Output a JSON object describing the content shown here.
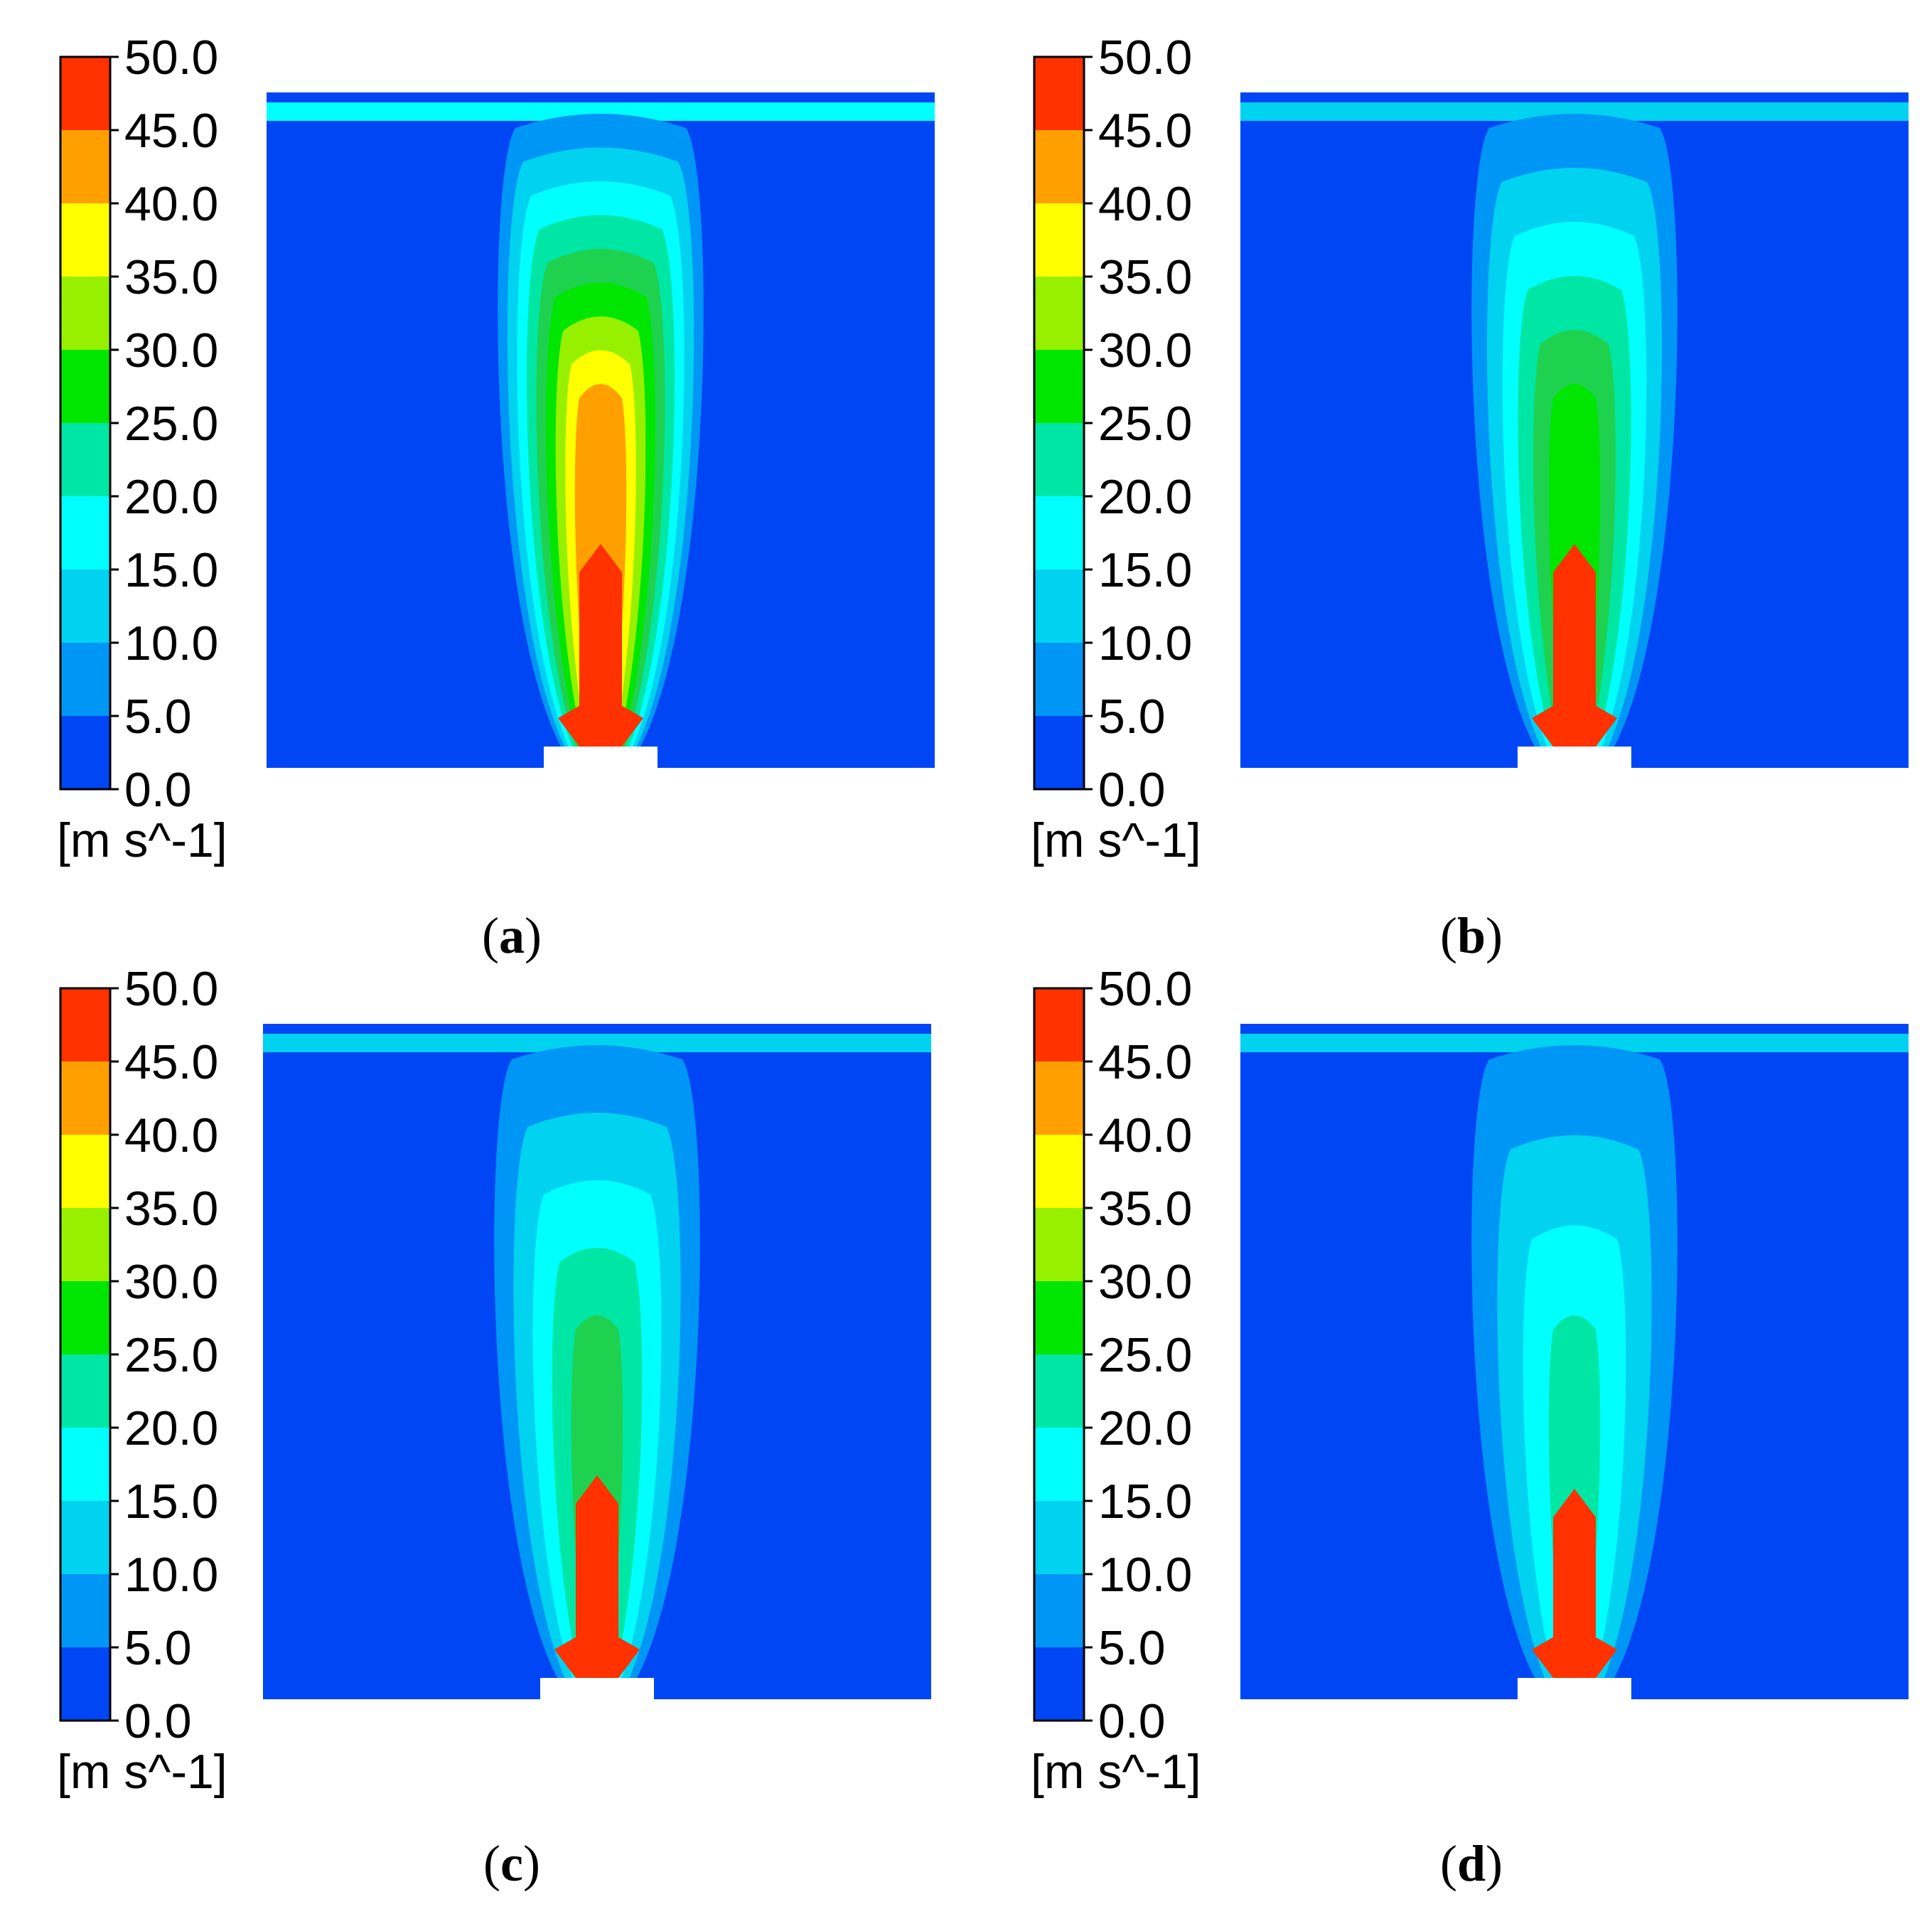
{
  "chart_data": {
    "type": "heatmap",
    "description_units": "m s^-1",
    "colorbar": {
      "min": 0.0,
      "max": 50.0,
      "step": 5.0,
      "tick_labels": [
        "50.0",
        "45.0",
        "40.0",
        "35.0",
        "30.0",
        "25.0",
        "20.0",
        "15.0",
        "10.0",
        "5.0",
        "0.0"
      ],
      "unit_label": "[m s^-1]",
      "colors": [
        "#0046f5",
        "#0096f5",
        "#00d2f0",
        "#00ffff",
        "#00e6a5",
        "#1ed250",
        "#00e600",
        "#96f000",
        "#ffff00",
        "#ffa000",
        "#ff3200"
      ]
    },
    "panels": [
      {
        "label_open": "(",
        "label_letter": "a",
        "label_close": ")",
        "jet_max_speed": 50.0,
        "core_top_fraction": 0.3,
        "plume_peak_level": 9,
        "top_layer_level": 3
      },
      {
        "label_open": "(",
        "label_letter": "b",
        "label_close": ")",
        "jet_max_speed": 50.0,
        "core_top_fraction": 0.3,
        "plume_peak_level": 6,
        "top_layer_level": 2
      },
      {
        "label_open": "(",
        "label_letter": "c",
        "label_close": ")",
        "jet_max_speed": 50.0,
        "core_top_fraction": 0.3,
        "plume_peak_level": 5,
        "top_layer_level": 2
      },
      {
        "label_open": "(",
        "label_letter": "d",
        "label_close": ")",
        "jet_max_speed": 50.0,
        "core_top_fraction": 0.28,
        "plume_peak_level": 4,
        "top_layer_level": 2
      }
    ]
  }
}
